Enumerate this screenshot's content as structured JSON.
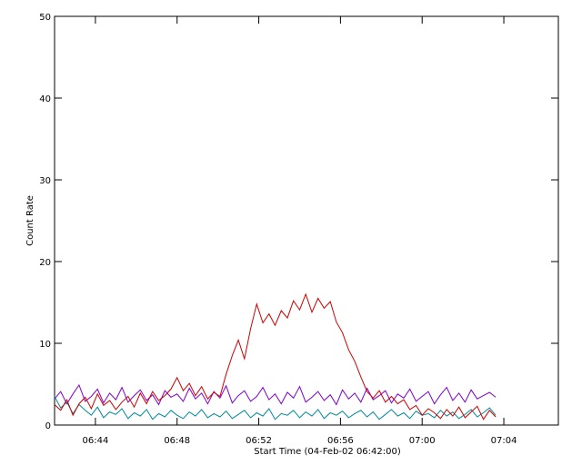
{
  "chart_data": {
    "type": "line",
    "xlabel": "Start Time (04-Feb-02 06:42:00)",
    "ylabel": "Count Rate",
    "x": [
      0,
      0.3,
      0.6,
      0.9,
      1.2,
      1.5,
      1.8,
      2.1,
      2.4,
      2.7,
      3,
      3.3,
      3.6,
      3.9,
      4.2,
      4.5,
      4.8,
      5.1,
      5.4,
      5.7,
      6,
      6.3,
      6.6,
      6.9,
      7.2,
      7.5,
      7.8,
      8.1,
      8.4,
      8.7,
      9,
      9.3,
      9.6,
      9.9,
      10.2,
      10.5,
      10.8,
      11.1,
      11.4,
      11.7,
      12,
      12.3,
      12.6,
      12.9,
      13.2,
      13.5,
      13.8,
      14.1,
      14.4,
      14.7,
      15,
      15.3,
      15.6,
      15.9,
      16.2,
      16.5,
      16.8,
      17.1,
      17.4,
      17.7,
      18,
      18.3,
      18.6,
      18.9,
      19.2,
      19.5,
      19.8,
      20.1,
      20.4,
      20.7,
      21,
      21.3,
      21.6
    ],
    "series": [
      {
        "color": "#7f00cc",
        "values": [
          3.2,
          4.1,
          2.6,
          3.8,
          4.9,
          2.9,
          3.5,
          4.4,
          2.7,
          3.9,
          3.1,
          4.6,
          2.8,
          3.6,
          4.3,
          3.0,
          3.7,
          2.5,
          4.2,
          3.4,
          3.8,
          2.9,
          4.5,
          3.2,
          3.9,
          2.6,
          4.1,
          3.3,
          4.8,
          2.7,
          3.6,
          4.2,
          2.9,
          3.5,
          4.6,
          3.1,
          3.8,
          2.6,
          4.0,
          3.3,
          4.7,
          2.8,
          3.4,
          4.1,
          3.0,
          3.7,
          2.5,
          4.3,
          3.2,
          3.9,
          2.8,
          4.5,
          3.1,
          3.6,
          4.2,
          2.7,
          3.8,
          3.3,
          4.4,
          2.9,
          3.5,
          4.1,
          2.6,
          3.7,
          4.6,
          3.0,
          3.9,
          2.8,
          4.3,
          3.2,
          3.6,
          4.0,
          3.4
        ]
      },
      {
        "color": "#008b9b",
        "values": [
          3.5,
          2.1,
          2.8,
          1.4,
          2.5,
          1.8,
          1.2,
          2.2,
          0.9,
          1.6,
          1.3,
          2.0,
          0.8,
          1.5,
          1.1,
          1.9,
          0.7,
          1.4,
          1.0,
          1.8,
          1.2,
          0.8,
          1.6,
          1.1,
          1.9,
          0.9,
          1.4,
          1.0,
          1.7,
          0.8,
          1.3,
          1.8,
          0.9,
          1.5,
          1.1,
          2.0,
          0.7,
          1.4,
          1.2,
          1.8,
          0.9,
          1.6,
          1.1,
          1.9,
          0.8,
          1.5,
          1.2,
          1.7,
          0.9,
          1.4,
          1.8,
          1.0,
          1.6,
          0.7,
          1.3,
          1.9,
          1.1,
          1.5,
          0.8,
          1.7,
          1.2,
          1.4,
          0.9,
          1.8,
          1.1,
          1.6,
          0.8,
          1.3,
          1.9,
          1.0,
          1.5,
          2.1,
          1.2
        ]
      },
      {
        "color": "#cc0000",
        "values": [
          2.5,
          1.8,
          3.1,
          1.2,
          2.6,
          3.4,
          2.0,
          3.8,
          2.4,
          3.0,
          1.9,
          2.8,
          3.5,
          2.2,
          3.9,
          2.6,
          4.1,
          3.0,
          3.6,
          4.4,
          5.8,
          4.2,
          5.1,
          3.6,
          4.7,
          3.2,
          4.0,
          3.5,
          6.2,
          8.5,
          10.4,
          8.1,
          11.8,
          14.8,
          12.5,
          13.6,
          12.2,
          14.0,
          13.1,
          15.2,
          14.1,
          16.0,
          13.8,
          15.5,
          14.3,
          15.1,
          12.6,
          11.3,
          9.2,
          7.8,
          5.9,
          4.1,
          3.3,
          4.2,
          2.8,
          3.5,
          2.6,
          3.1,
          1.9,
          2.4,
          1.2,
          2.0,
          1.5,
          0.8,
          1.9,
          1.1,
          2.2,
          0.9,
          1.6,
          2.3,
          0.7,
          1.8,
          1.0
        ]
      }
    ],
    "xlim": [
      0,
      24.67
    ],
    "xticks": [
      {
        "value": 2,
        "label": "06:44"
      },
      {
        "value": 6,
        "label": "06:48"
      },
      {
        "value": 10,
        "label": "06:52"
      },
      {
        "value": 14,
        "label": "06:56"
      },
      {
        "value": 18,
        "label": "07:00"
      },
      {
        "value": 22,
        "label": "07:04"
      }
    ],
    "ylim": [
      0,
      50
    ],
    "yticks": [
      0,
      10,
      20,
      30,
      40,
      50
    ]
  }
}
